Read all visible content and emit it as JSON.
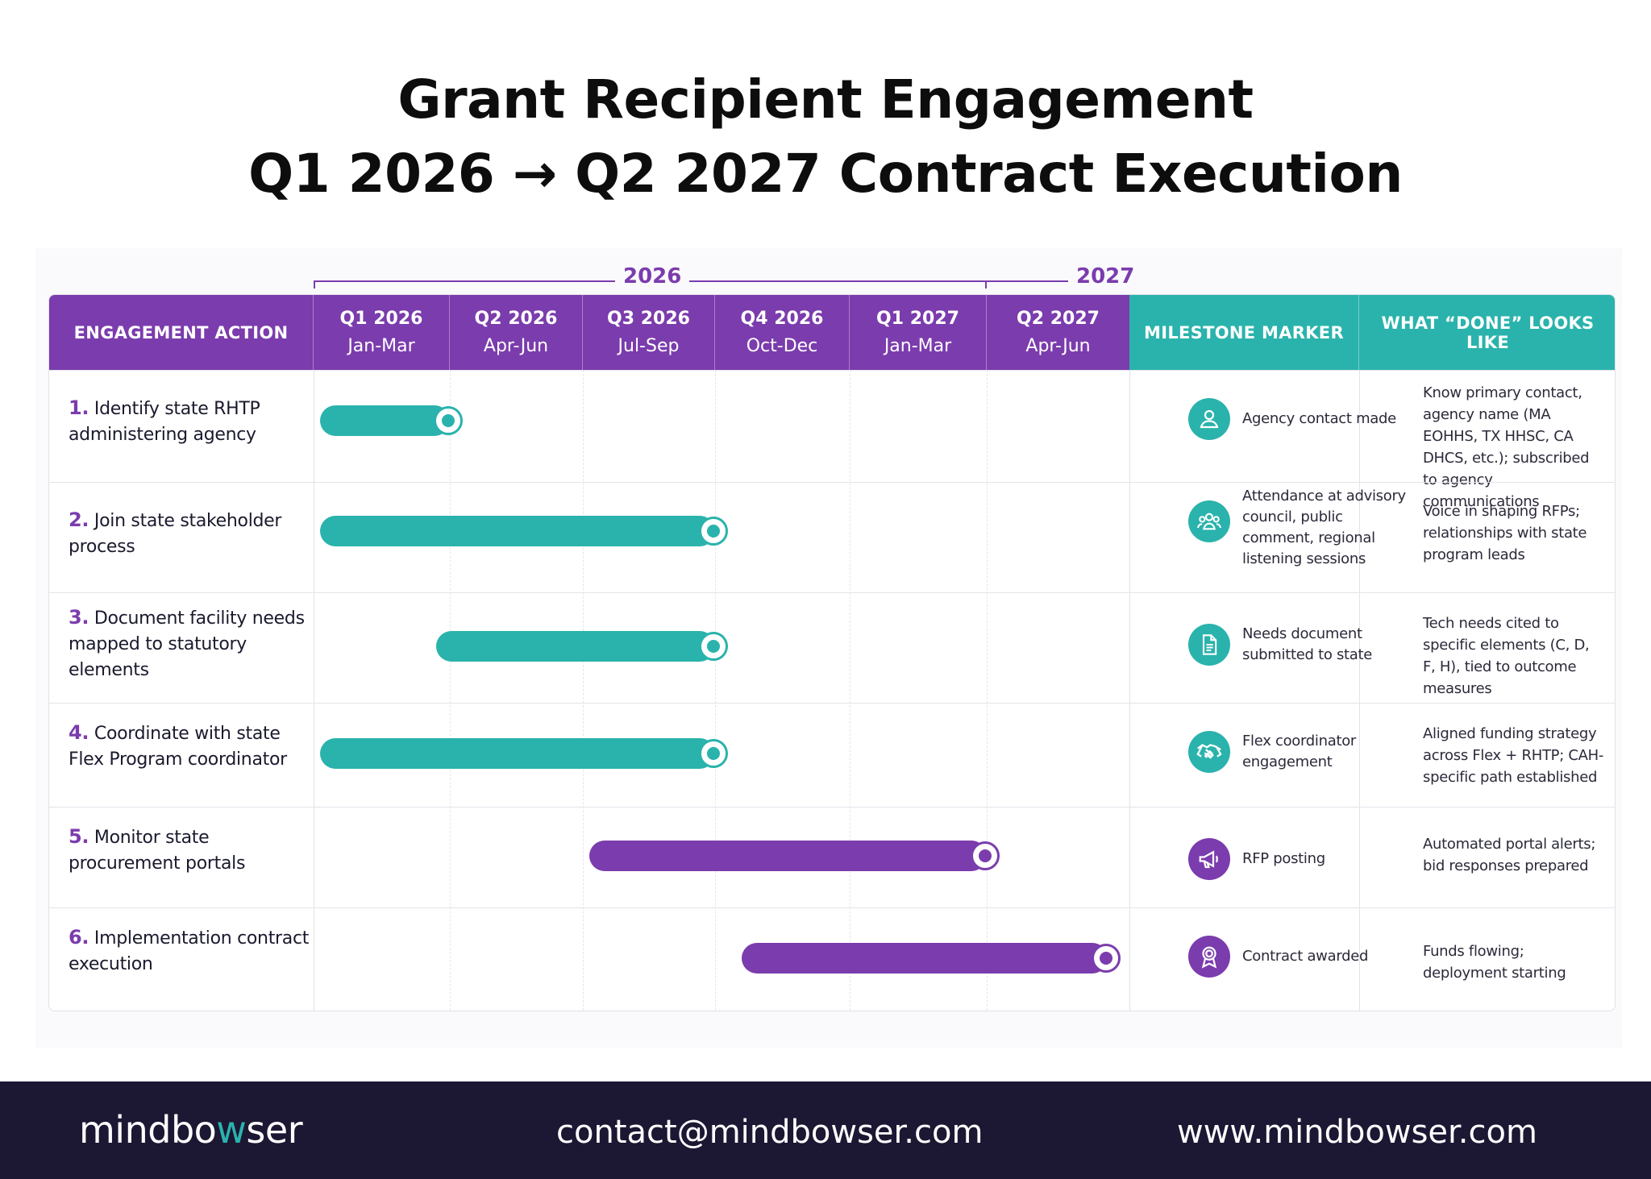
{
  "title": {
    "line1": "Grant Recipient Engagement",
    "line2": "Q1 2026 → Q2 2027 Contract Execution"
  },
  "years": [
    "2026",
    "2027"
  ],
  "header": {
    "action": "ENGAGEMENT ACTION",
    "milestone": "MILESTONE MARKER",
    "done": "WHAT “DONE” LOOKS LIKE",
    "quarters": [
      {
        "q": "Q1 2026",
        "m": "Jan-Mar"
      },
      {
        "q": "Q2 2026",
        "m": "Apr-Jun"
      },
      {
        "q": "Q3 2026",
        "m": "Jul-Sep"
      },
      {
        "q": "Q4 2026",
        "m": "Oct-Dec"
      },
      {
        "q": "Q1 2027",
        "m": "Jan-Mar"
      },
      {
        "q": "Q2 2027",
        "m": "Apr-Jun"
      }
    ]
  },
  "rows": [
    {
      "num": "1.",
      "action": "Identify state RHTP administering agency",
      "start_quarter": 0.05,
      "end_quarter": 1.0,
      "color": "#2ab3ac",
      "milestone_icon": "person-icon",
      "milestone_color": "#2ab3ac",
      "milestone": "Agency contact made",
      "done": "Know primary contact, agency name (MA EOHHS, TX HHSC, CA DHCS, etc.); subscribed to agency communications"
    },
    {
      "num": "2.",
      "action": "Join state stakeholder process",
      "start_quarter": 0.05,
      "end_quarter": 3.0,
      "color": "#2ab3ac",
      "milestone_icon": "group-icon",
      "milestone_color": "#2ab3ac",
      "milestone": "Attendance at advisory council, public comment, regional listening sessions",
      "done": "Voice in shaping RFPs; relationships with state program leads"
    },
    {
      "num": "3.",
      "action": "Document facility needs mapped to statutory elements",
      "start_quarter": 0.9,
      "end_quarter": 3.0,
      "color": "#2ab3ac",
      "milestone_icon": "document-icon",
      "milestone_color": "#2ab3ac",
      "milestone": "Needs document submitted to state",
      "done": "Tech needs cited to specific elements (C, D, F, H), tied to outcome measures"
    },
    {
      "num": "4.",
      "action": "Coordinate with state Flex Program coordinator",
      "start_quarter": 0.05,
      "end_quarter": 3.0,
      "color": "#2ab3ac",
      "milestone_icon": "handshake-icon",
      "milestone_color": "#2ab3ac",
      "milestone": "Flex coordinator engagement",
      "done": "Aligned funding strategy across Flex + RHTP; CAH-specific path established"
    },
    {
      "num": "5.",
      "action": "Monitor state procurement portals",
      "start_quarter": 2.05,
      "end_quarter": 5.0,
      "color": "#7b3cad",
      "milestone_icon": "megaphone-icon",
      "milestone_color": "#7b3cad",
      "milestone": "RFP posting",
      "done": "Automated portal alerts; bid responses prepared"
    },
    {
      "num": "6.",
      "action": "Implementation contract execution",
      "start_quarter": 3.2,
      "end_quarter": 5.85,
      "color": "#7b3cad",
      "milestone_icon": "award-icon",
      "milestone_color": "#7b3cad",
      "milestone": "Contract awarded",
      "done": "Funds flowing; deployment starting"
    }
  ],
  "footer": {
    "brand_pre": "mindbo",
    "brand_w": "w",
    "brand_post": "ser",
    "email": "contact@mindbowser.com",
    "website": "www.mindbowser.com"
  }
}
